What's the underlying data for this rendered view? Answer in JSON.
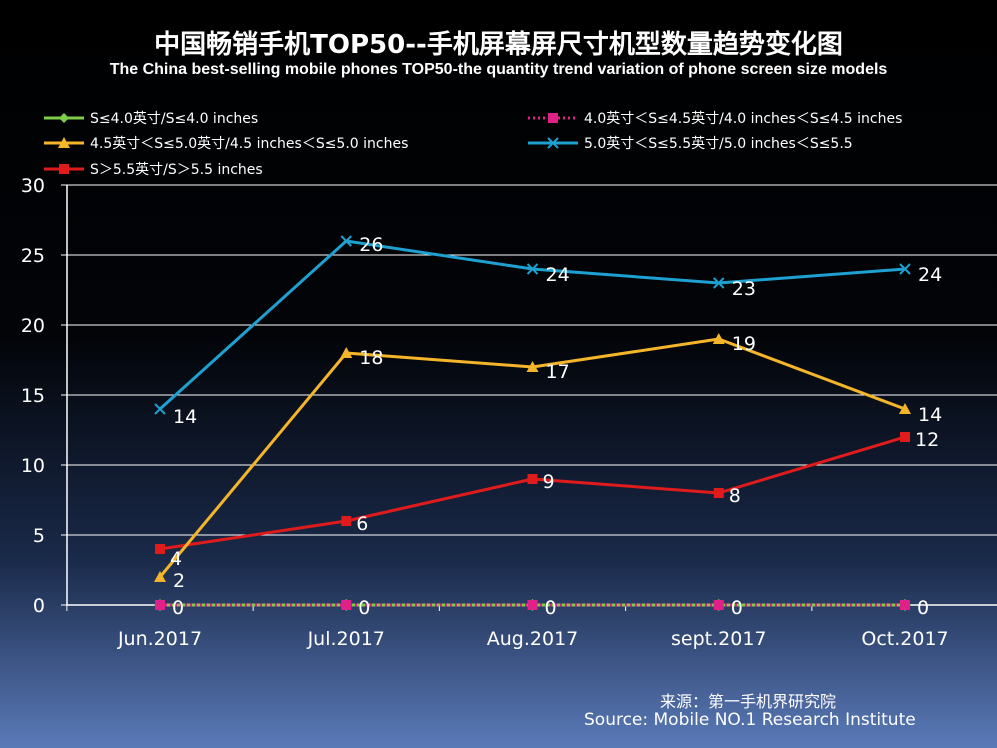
{
  "title_cn": "中国畅销手机TOP50--手机屏幕屏尺寸机型数量趋势变化图",
  "title_en": "The China best-selling mobile phones TOP50-the quantity trend variation of phone screen size models",
  "source_cn": "来源：第一手机界研究院",
  "source_en": "Source: Mobile NO.1 Research Institute",
  "colors": {
    "s1": "#7dcc4a",
    "s2": "#e0218a",
    "s3": "#f5b52a",
    "s4": "#1ea0d0",
    "s5": "#e01b1b"
  },
  "chart_data": {
    "type": "line",
    "title": "中国畅销手机TOP50--手机屏幕屏尺寸机型数量趋势变化图",
    "categories": [
      "Jun.2017",
      "Jul.2017",
      "Aug.2017",
      "sept.2017",
      "Oct.2017"
    ],
    "ylim": [
      0,
      30
    ],
    "yticks": [
      0,
      5,
      10,
      15,
      20,
      25,
      30
    ],
    "grid": true,
    "legend_position": "top",
    "series": [
      {
        "name": "S≤4.0英寸/S≤4.0 inches",
        "marker": "diamond",
        "color_key": "s1",
        "dash": false,
        "values": [
          0,
          0,
          0,
          0,
          0
        ]
      },
      {
        "name": "4.0英寸＜S≤4.5英寸/4.0 inches＜S≤4.5 inches",
        "marker": "square",
        "color_key": "s2",
        "dash": true,
        "values": [
          0,
          0,
          0,
          0,
          0
        ]
      },
      {
        "name": "4.5英寸＜S≤5.0英寸/4.5 inches＜S≤5.0 inches",
        "marker": "triangle",
        "color_key": "s3",
        "dash": false,
        "values": [
          2,
          18,
          17,
          19,
          14
        ]
      },
      {
        "name": "5.0英寸＜S≤5.5英寸/5.0 inches＜S≤5.5",
        "marker": "x",
        "color_key": "s4",
        "dash": false,
        "values": [
          14,
          26,
          24,
          23,
          24
        ]
      },
      {
        "name": "S＞5.5英寸/S＞5.5 inches",
        "marker": "square",
        "color_key": "s5",
        "dash": false,
        "values": [
          4,
          6,
          9,
          8,
          12
        ]
      }
    ]
  }
}
